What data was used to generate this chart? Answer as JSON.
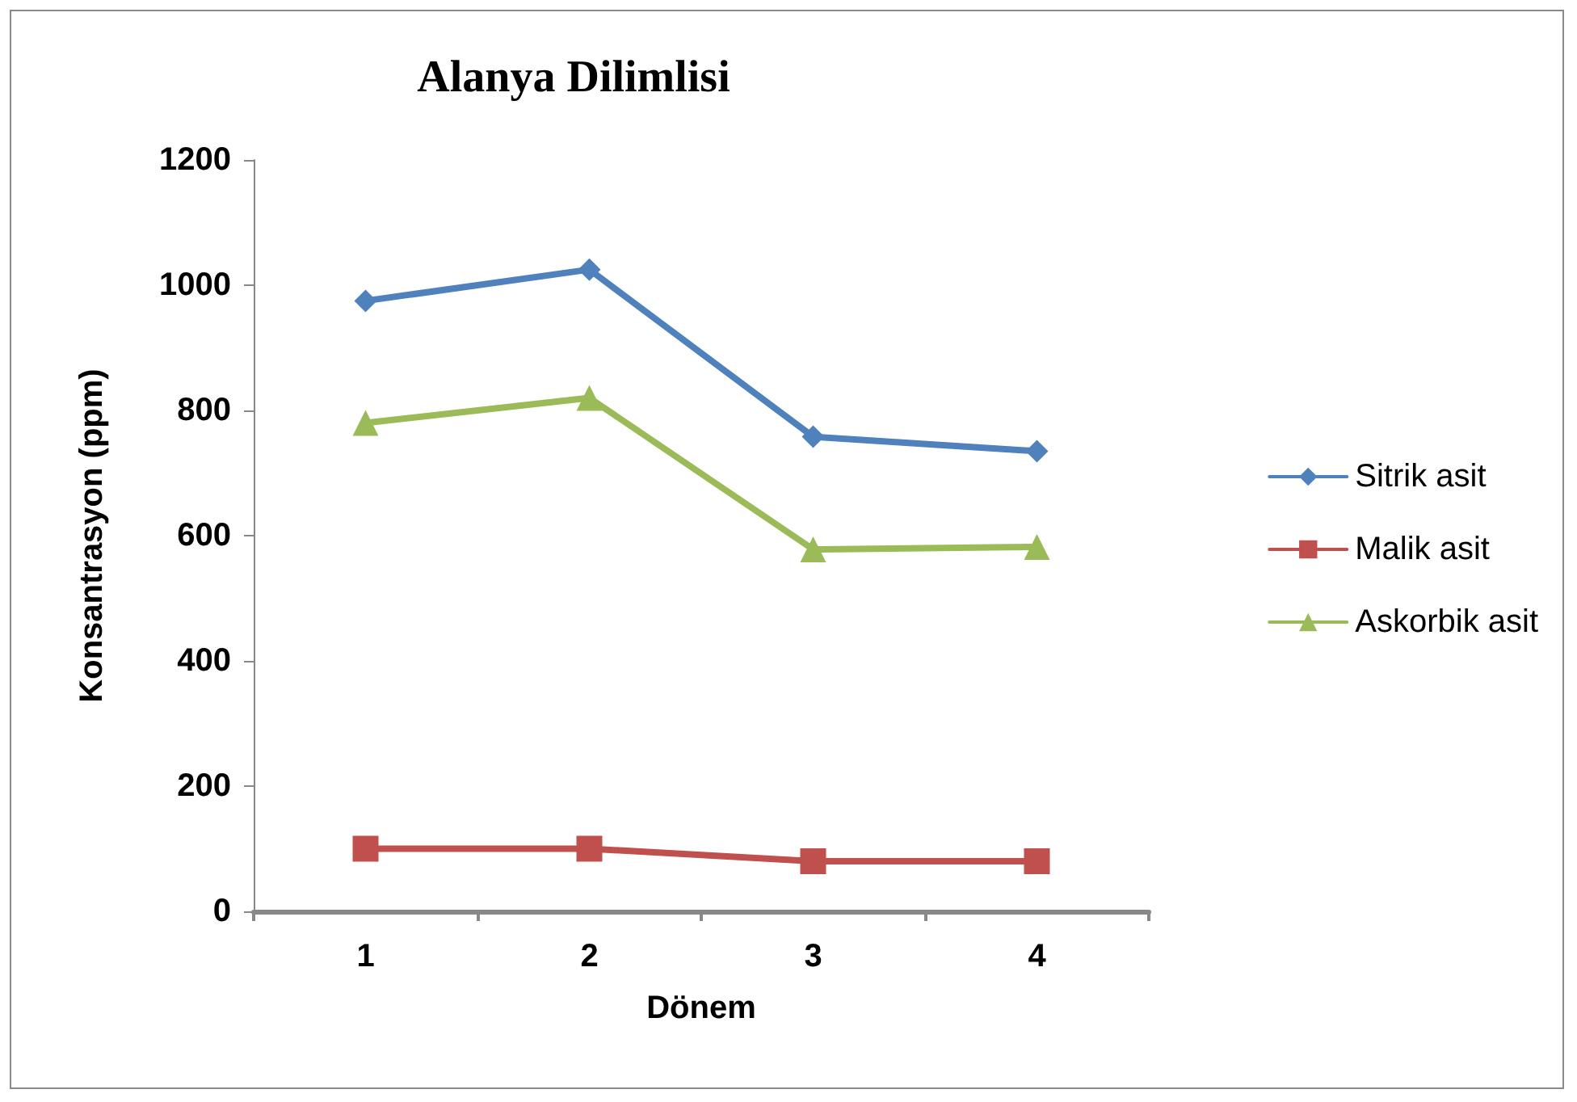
{
  "chart_data": {
    "type": "line",
    "title": "Alanya Dilimlisi",
    "xlabel": "Dönem",
    "ylabel": "Konsantrasyon (ppm)",
    "categories": [
      "1",
      "2",
      "3",
      "4"
    ],
    "series": [
      {
        "name": "Sitrik asit",
        "color": "#4f81bd",
        "marker": "diamond",
        "values": [
          975,
          1025,
          758,
          735
        ]
      },
      {
        "name": "Malik asit",
        "color": "#c0504d",
        "marker": "square",
        "values": [
          100,
          100,
          80,
          80
        ]
      },
      {
        "name": "Askorbik asit",
        "color": "#9bbb59",
        "marker": "triangle",
        "values": [
          780,
          820,
          578,
          582
        ]
      }
    ],
    "ylim": [
      0,
      1200
    ],
    "yticks": [
      0,
      200,
      400,
      600,
      800,
      1000,
      1200
    ],
    "grid": false,
    "legend": "right",
    "line_style": "solid"
  }
}
